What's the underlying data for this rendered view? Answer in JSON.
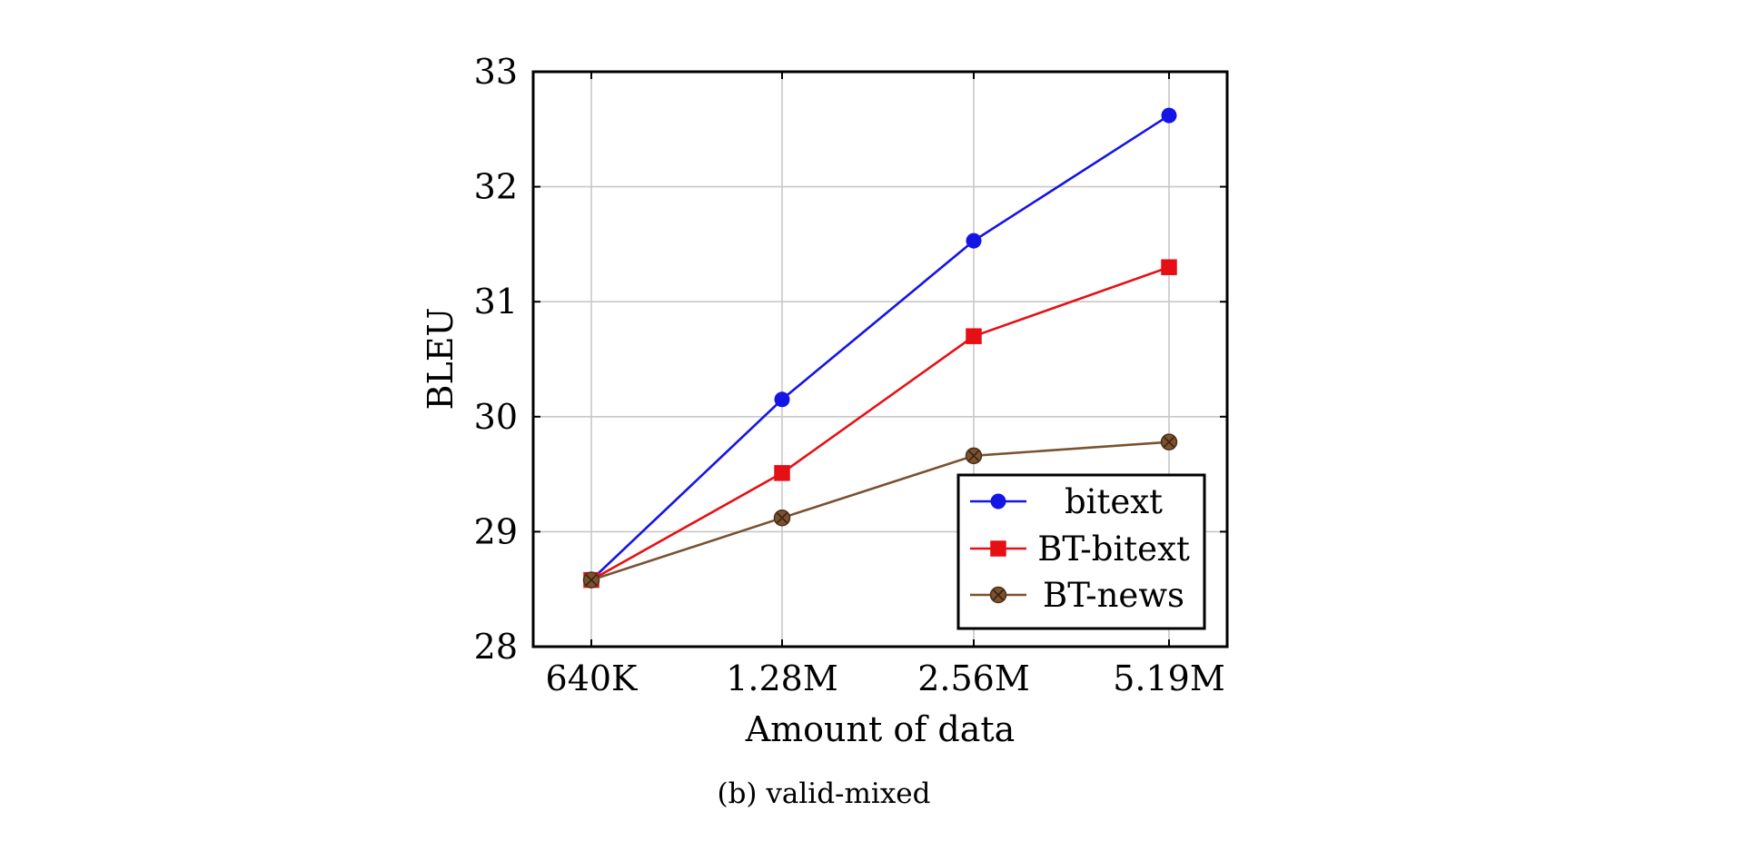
{
  "chart_data": {
    "type": "line",
    "title": "",
    "caption": "(b) valid-mixed",
    "xlabel": "Amount of data",
    "ylabel": "BLEU",
    "categories": [
      "640K",
      "1.28M",
      "2.56M",
      "5.19M"
    ],
    "ylim": [
      28,
      33
    ],
    "yticks": [
      28,
      29,
      30,
      31,
      32,
      33
    ],
    "grid": true,
    "legend_position": "bottom-right",
    "series": [
      {
        "name": "bitext",
        "color": "#1414e6",
        "marker": "circle",
        "values": [
          28.58,
          30.15,
          31.53,
          32.62
        ]
      },
      {
        "name": "BT-bitext",
        "color": "#e60f14",
        "marker": "square",
        "values": [
          28.58,
          29.51,
          30.7,
          31.3
        ]
      },
      {
        "name": "BT-news",
        "color": "#7a5230",
        "marker": "circle-cross",
        "values": [
          28.58,
          29.12,
          29.66,
          29.78
        ]
      }
    ]
  }
}
